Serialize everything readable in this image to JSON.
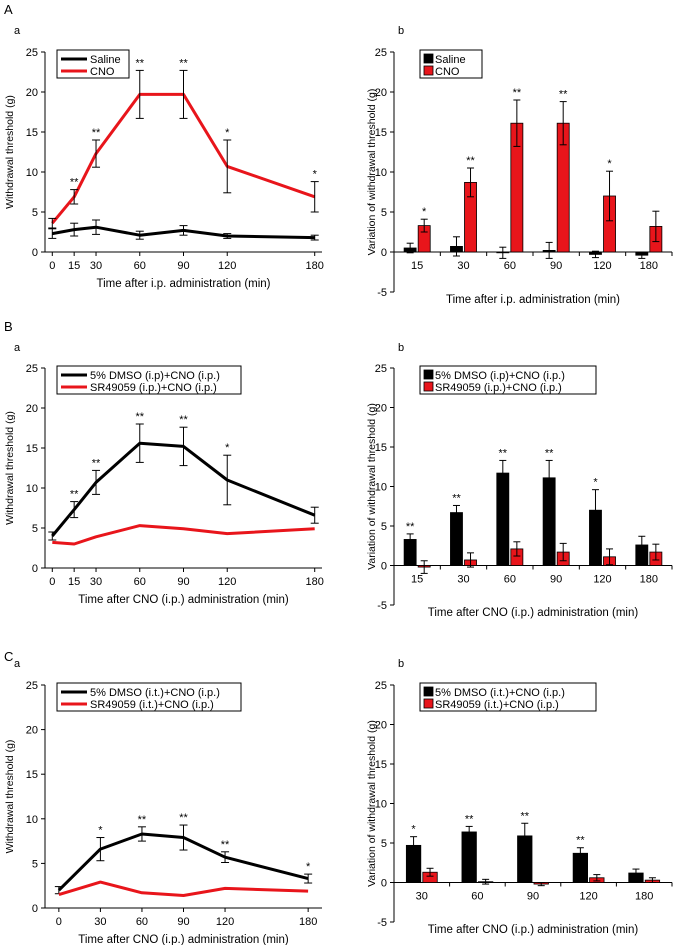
{
  "panels": [
    {
      "label": "A"
    },
    {
      "label": "B"
    },
    {
      "label": "C"
    }
  ],
  "colors": {
    "black": "#000000",
    "red": "#e8151b"
  },
  "chart_data": [
    {
      "id": "A-a",
      "panel": "A",
      "sub": "a",
      "type": "line",
      "xlabel": "Time after i.p. administration (min)",
      "ylabel": "Withdrawal threshold (g)",
      "ylim": [
        0,
        25
      ],
      "yticks": [
        0,
        5,
        10,
        15,
        20,
        25
      ],
      "x": [
        0,
        15,
        30,
        60,
        90,
        120,
        180
      ],
      "xticks": [
        0,
        15,
        30,
        60,
        90,
        120,
        180
      ],
      "xlim": [
        -5,
        185
      ],
      "series": [
        {
          "name": "Saline",
          "color": "black",
          "values": [
            2.3,
            2.8,
            3.1,
            2.1,
            2.7,
            2.0,
            1.8
          ],
          "err": [
            0.6,
            0.8,
            0.9,
            0.5,
            0.6,
            0.3,
            0.3
          ]
        },
        {
          "name": "CNO",
          "color": "red",
          "values": [
            3.6,
            6.9,
            12.3,
            19.7,
            19.7,
            10.7,
            6.9
          ],
          "err": [
            0.6,
            0.9,
            1.7,
            3.0,
            3.0,
            3.3,
            1.9
          ]
        }
      ],
      "sig": [
        "",
        "**",
        "**",
        "**",
        "**",
        "*",
        "*"
      ]
    },
    {
      "id": "A-b",
      "panel": "A",
      "sub": "b",
      "type": "bar",
      "xlabel": "Time after i.p. administration (min)",
      "ylabel": "Variation of withdrawal  threshold (g)",
      "ylim": [
        -5,
        25
      ],
      "yticks": [
        -5,
        0,
        5,
        10,
        15,
        20,
        25
      ],
      "categories": [
        "15",
        "30",
        "60",
        "90",
        "120",
        "180"
      ],
      "series": [
        {
          "name": "Saline",
          "color": "black",
          "values": [
            0.5,
            0.7,
            -0.1,
            0.2,
            -0.3,
            -0.4
          ],
          "err": [
            0.6,
            1.2,
            0.7,
            1.0,
            0.4,
            0.4
          ]
        },
        {
          "name": "CNO",
          "color": "red",
          "values": [
            3.3,
            8.7,
            16.1,
            16.1,
            7.0,
            3.2
          ],
          "err": [
            0.8,
            1.8,
            2.9,
            2.7,
            3.1,
            1.9
          ]
        }
      ],
      "sig": [
        "*",
        "**",
        "**",
        "**",
        "*",
        ""
      ]
    },
    {
      "id": "B-a",
      "panel": "B",
      "sub": "a",
      "type": "line",
      "xlabel": "Time after CNO (i.p.) administration (min)",
      "ylabel": "Withdrawal threshold (g)",
      "ylim": [
        0,
        25
      ],
      "yticks": [
        0,
        5,
        10,
        15,
        20,
        25
      ],
      "x": [
        0,
        15,
        30,
        60,
        90,
        120,
        180
      ],
      "xticks": [
        0,
        15,
        30,
        60,
        90,
        120,
        180
      ],
      "xlim": [
        -5,
        185
      ],
      "series": [
        {
          "name": "5% DMSO (i.p)+CNO (i.p.)",
          "color": "black",
          "values": [
            4.0,
            7.3,
            10.7,
            15.6,
            15.2,
            11.0,
            6.6
          ],
          "err": [
            0.5,
            1.0,
            1.5,
            2.4,
            2.4,
            3.1,
            1.0
          ]
        },
        {
          "name": "SR49059 (i.p.)+CNO (i.p.)",
          "color": "red",
          "values": [
            3.2,
            3.0,
            3.9,
            5.3,
            4.9,
            4.3,
            4.9
          ]
        }
      ],
      "sig": [
        "",
        "**",
        "**",
        "**",
        "**",
        "*",
        ""
      ]
    },
    {
      "id": "B-b",
      "panel": "B",
      "sub": "b",
      "type": "bar",
      "xlabel": "Time after CNO (i.p.) administration (min)",
      "ylabel": "Variation of withdrawal threshold (g)",
      "ylim": [
        -5,
        25
      ],
      "yticks": [
        -5,
        0,
        5,
        10,
        15,
        20,
        25
      ],
      "categories": [
        "15",
        "30",
        "60",
        "90",
        "120",
        "180"
      ],
      "series": [
        {
          "name": "5% DMSO (i.p)+CNO (i.p.)",
          "color": "black",
          "values": [
            3.3,
            6.7,
            11.7,
            11.1,
            7.0,
            2.6
          ],
          "err": [
            0.7,
            0.9,
            1.6,
            2.2,
            2.6,
            1.1
          ]
        },
        {
          "name": "SR49059 (i.p.)+CNO (i.p.)",
          "color": "red",
          "values": [
            -0.2,
            0.7,
            2.1,
            1.7,
            1.1,
            1.7
          ],
          "err": [
            0.8,
            0.9,
            0.9,
            1.1,
            1.0,
            1.0
          ]
        }
      ],
      "sig": [
        "**",
        "**",
        "**",
        "**",
        "*",
        ""
      ]
    },
    {
      "id": "C-a",
      "panel": "C",
      "sub": "a",
      "type": "line",
      "xlabel": "Time after CNO (i.p.) administration (min)",
      "ylabel": "Withdrawal threshold (g)",
      "ylim": [
        0,
        25
      ],
      "yticks": [
        0,
        5,
        10,
        15,
        20,
        25
      ],
      "x": [
        0,
        30,
        60,
        90,
        120,
        180
      ],
      "xticks": [
        0,
        30,
        60,
        90,
        120,
        180
      ],
      "xlim": [
        -10,
        190
      ],
      "series": [
        {
          "name": "5% DMSO (i.t.)+CNO (i.p.)",
          "color": "black",
          "values": [
            2.0,
            6.6,
            8.3,
            7.9,
            5.7,
            3.3
          ],
          "err": [
            0.4,
            1.3,
            0.8,
            1.4,
            0.6,
            0.5
          ]
        },
        {
          "name": "SR49059 (i.t.)+CNO (i.p.)",
          "color": "red",
          "values": [
            1.5,
            2.9,
            1.7,
            1.4,
            2.2,
            1.9
          ]
        }
      ],
      "sig": [
        "",
        "*",
        "**",
        "**",
        "**",
        "*"
      ]
    },
    {
      "id": "C-b",
      "panel": "C",
      "sub": "b",
      "type": "bar",
      "xlabel": "Time after CNO (i.p.) administration (min)",
      "ylabel": "Variation of withdrawal  threshold (g)",
      "ylim": [
        -5,
        25
      ],
      "yticks": [
        -5,
        0,
        5,
        10,
        15,
        20,
        25
      ],
      "categories": [
        "30",
        "60",
        "90",
        "120",
        "180"
      ],
      "series": [
        {
          "name": "5% DMSO (i.t.)+CNO (i.p.)",
          "color": "black",
          "values": [
            4.7,
            6.4,
            5.9,
            3.7,
            1.2
          ],
          "err": [
            1.1,
            0.7,
            1.6,
            0.7,
            0.5
          ]
        },
        {
          "name": "SR49059 (i.t.)+CNO (i.p.)",
          "color": "red",
          "values": [
            1.3,
            0.1,
            -0.2,
            0.6,
            0.3
          ],
          "err": [
            0.5,
            0.3,
            0.2,
            0.4,
            0.3
          ]
        }
      ],
      "sig": [
        "*",
        "**",
        "**",
        "**",
        ""
      ]
    }
  ]
}
